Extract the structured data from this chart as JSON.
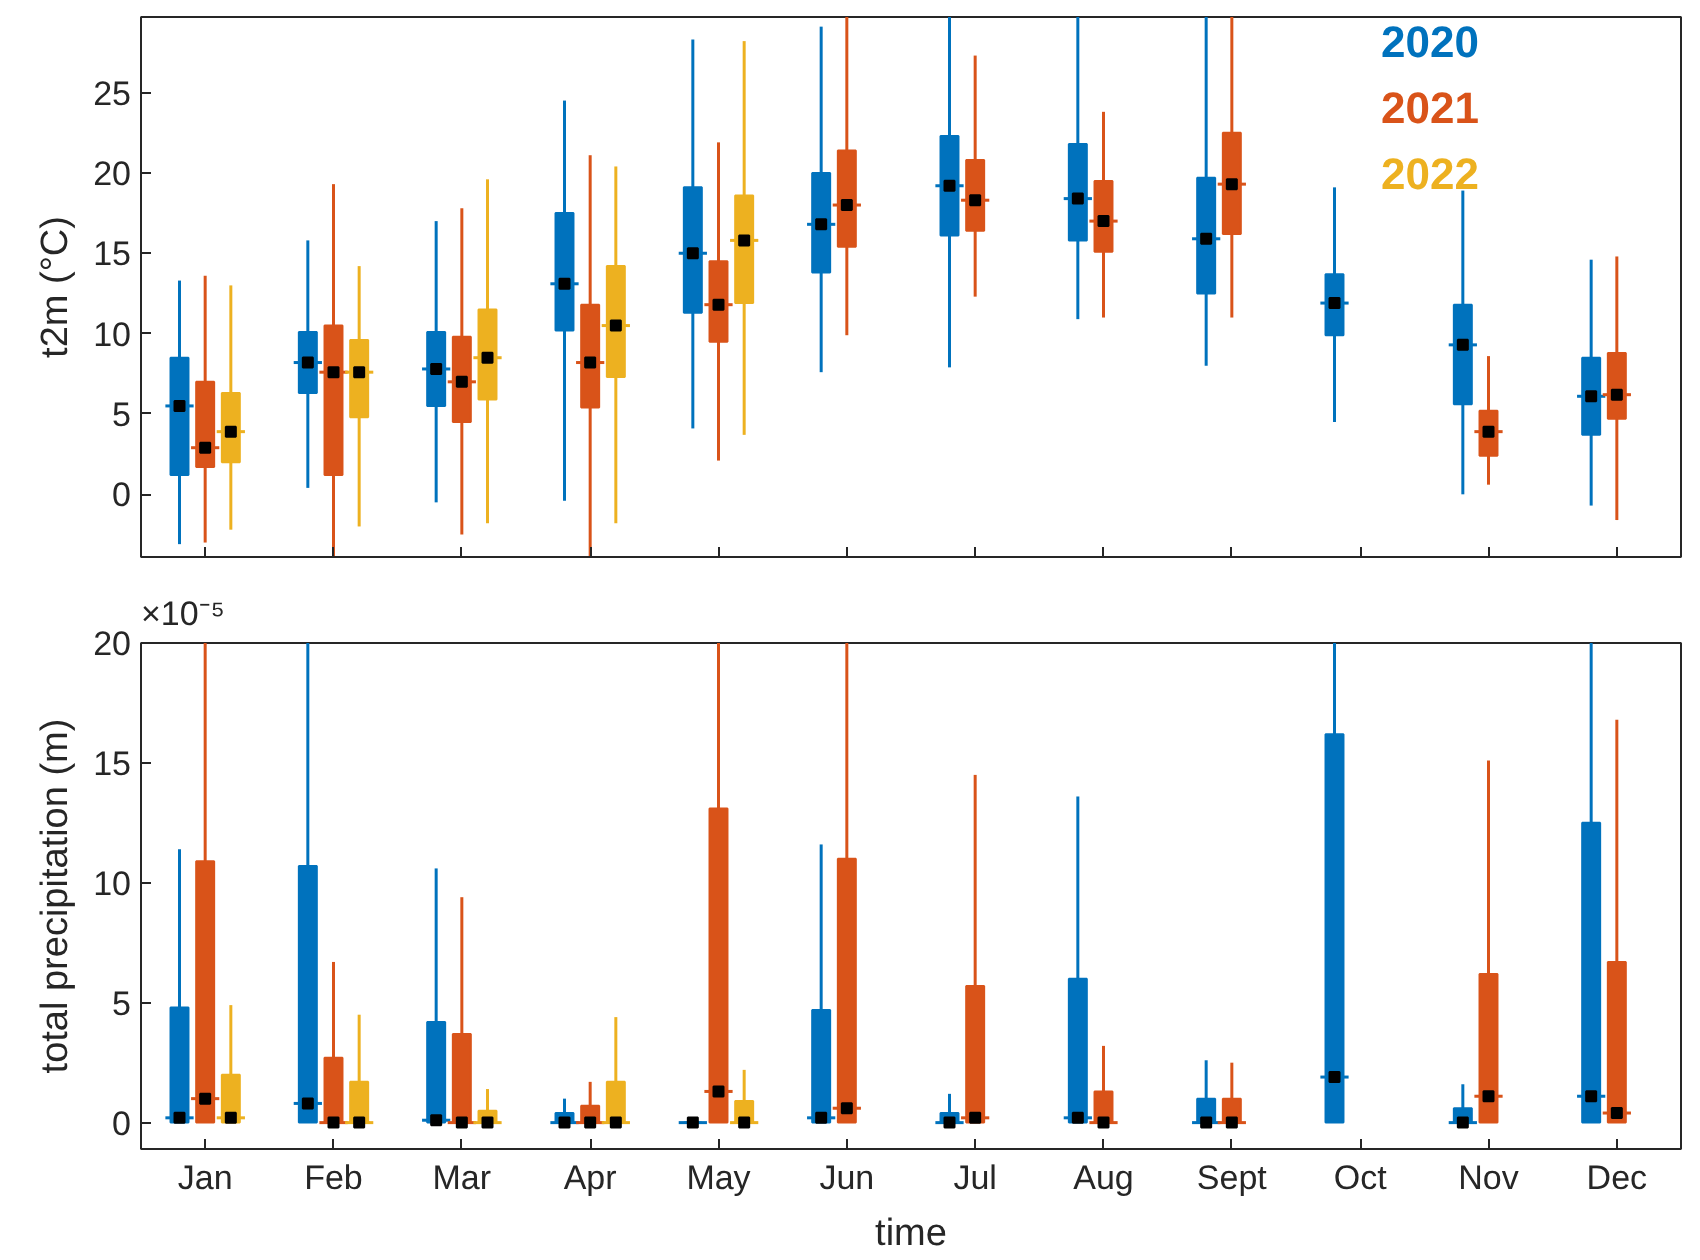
{
  "chart_data": [
    {
      "type": "box",
      "categories": [
        null,
        null,
        null,
        null,
        null,
        null,
        null,
        null,
        null,
        null,
        null,
        null
      ],
      "ylabel": "t2m (°C)",
      "ylim": [
        -3.9,
        29.7
      ],
      "yticks": [
        0,
        5,
        10,
        15,
        20,
        25
      ],
      "grid": false,
      "legend": "top right",
      "series": [
        {
          "name": "2020",
          "color": "#0072bd",
          "boxes": [
            {
              "low": -3.1,
              "q1": 1.2,
              "median": 5.5,
              "q3": 8.5,
              "high": 13.3,
              "mean": 5.5
            },
            {
              "low": 0.4,
              "q1": 6.3,
              "median": 8.2,
              "q3": 10.1,
              "high": 15.8,
              "mean": 8.2
            },
            {
              "low": -0.5,
              "q1": 5.5,
              "median": 7.8,
              "q3": 10.1,
              "high": 17.0,
              "mean": 7.8
            },
            {
              "low": -0.4,
              "q1": 10.2,
              "median": 13.1,
              "q3": 17.5,
              "high": 24.5,
              "mean": 13.1
            },
            {
              "low": 4.1,
              "q1": 11.3,
              "median": 15.0,
              "q3": 19.1,
              "high": 28.3,
              "mean": 15.0
            },
            {
              "low": 7.6,
              "q1": 13.8,
              "median": 16.8,
              "q3": 20.0,
              "high": 29.1,
              "mean": 16.8
            },
            {
              "low": 7.9,
              "q1": 16.1,
              "median": 19.2,
              "q3": 22.3,
              "high": 29.7,
              "mean": 19.2
            },
            {
              "low": 10.9,
              "q1": 15.8,
              "median": 18.4,
              "q3": 21.8,
              "high": 29.7,
              "mean": 18.4
            },
            {
              "low": 8.0,
              "q1": 12.5,
              "median": 15.9,
              "q3": 19.7,
              "high": 29.7,
              "mean": 15.9
            },
            {
              "low": 4.5,
              "q1": 9.9,
              "median": 11.9,
              "q3": 13.7,
              "high": 19.1,
              "mean": 11.9
            },
            {
              "low": 0.0,
              "q1": 5.6,
              "median": 9.3,
              "q3": 11.8,
              "high": 18.9,
              "mean": 9.3
            },
            {
              "low": -0.7,
              "q1": 3.7,
              "median": 6.1,
              "q3": 8.5,
              "high": 14.6,
              "mean": 6.1
            }
          ]
        },
        {
          "name": "2021",
          "color": "#d95319",
          "boxes": [
            {
              "low": -3.0,
              "q1": 1.7,
              "median": 2.9,
              "q3": 7.0,
              "high": 13.6,
              "mean": 2.9
            },
            {
              "low": -3.9,
              "q1": 1.2,
              "median": 7.6,
              "q3": 10.5,
              "high": 19.3,
              "mean": 7.6
            },
            {
              "low": -2.5,
              "q1": 4.5,
              "median": 7.0,
              "q3": 9.8,
              "high": 17.8,
              "mean": 7.0
            },
            {
              "low": -3.9,
              "q1": 5.4,
              "median": 8.2,
              "q3": 11.8,
              "high": 21.1,
              "mean": 8.2
            },
            {
              "low": 2.1,
              "q1": 9.5,
              "median": 11.8,
              "q3": 14.5,
              "high": 21.9,
              "mean": 11.8
            },
            {
              "low": 9.9,
              "q1": 15.4,
              "median": 18.0,
              "q3": 21.4,
              "high": 29.7,
              "mean": 18.0
            },
            {
              "low": 12.3,
              "q1": 16.4,
              "median": 18.3,
              "q3": 20.8,
              "high": 27.3,
              "mean": 18.3
            },
            {
              "low": 11.0,
              "q1": 15.1,
              "median": 17.0,
              "q3": 19.5,
              "high": 23.8,
              "mean": 17.0
            },
            {
              "low": 11.0,
              "q1": 16.2,
              "median": 19.3,
              "q3": 22.5,
              "high": 29.7,
              "mean": 19.3
            },
            null,
            {
              "low": 0.6,
              "q1": 2.4,
              "median": 3.9,
              "q3": 5.2,
              "high": 8.6,
              "mean": 3.9
            },
            {
              "low": -1.6,
              "q1": 4.7,
              "median": 6.2,
              "q3": 8.8,
              "high": 14.8,
              "mean": 6.2
            }
          ]
        },
        {
          "name": "2022",
          "color": "#edb120",
          "boxes": [
            {
              "low": -2.2,
              "q1": 2.0,
              "median": 3.9,
              "q3": 6.3,
              "high": 13.0,
              "mean": 3.9
            },
            {
              "low": -2.0,
              "q1": 4.8,
              "median": 7.6,
              "q3": 9.6,
              "high": 14.2,
              "mean": 7.6
            },
            {
              "low": -1.8,
              "q1": 5.9,
              "median": 8.5,
              "q3": 11.5,
              "high": 19.6,
              "mean": 8.5
            },
            {
              "low": -1.8,
              "q1": 7.3,
              "median": 10.5,
              "q3": 14.2,
              "high": 20.4,
              "mean": 10.5
            },
            {
              "low": 3.7,
              "q1": 11.9,
              "median": 15.8,
              "q3": 18.6,
              "high": 28.2,
              "mean": 15.8
            },
            null,
            null,
            null,
            null,
            null,
            null,
            null
          ]
        }
      ]
    },
    {
      "type": "box",
      "categories": [
        "Jan",
        "Feb",
        "Mar",
        "Apr",
        "May",
        "Jun",
        "Jul",
        "Aug",
        "Sept",
        "Oct",
        "Nov",
        "Dec"
      ],
      "xlabel": "time",
      "ylabel": "total precipitation (m)",
      "annotations": [
        "×10⁻⁵"
      ],
      "ylim": [
        -1.1,
        20
      ],
      "yticks": [
        0,
        5,
        10,
        15,
        20
      ],
      "grid": false,
      "series": [
        {
          "color": "#0072bd",
          "boxes": [
            {
              "low": 0,
              "q1": 0,
              "median": 0.2,
              "q3": 4.8,
              "high": 11.4,
              "mean": 0.2
            },
            {
              "low": 0,
              "q1": 0,
              "median": 0.8,
              "q3": 10.7,
              "high": 20,
              "mean": 0.8
            },
            {
              "low": 0,
              "q1": 0,
              "median": 0.1,
              "q3": 4.2,
              "high": 10.6,
              "mean": 0.1
            },
            {
              "low": 0,
              "q1": 0,
              "median": 0,
              "q3": 0.4,
              "high": 1.0,
              "mean": 0
            },
            {
              "low": 0,
              "q1": 0,
              "median": 0,
              "q3": 0,
              "high": 0,
              "mean": 0
            },
            {
              "low": 0,
              "q1": 0,
              "median": 0.2,
              "q3": 4.7,
              "high": 11.6,
              "mean": 0.2
            },
            {
              "low": 0,
              "q1": 0,
              "median": 0,
              "q3": 0.4,
              "high": 1.2,
              "mean": 0
            },
            {
              "low": 0,
              "q1": 0,
              "median": 0.2,
              "q3": 6.0,
              "high": 13.6,
              "mean": 0.2
            },
            {
              "low": 0,
              "q1": 0,
              "median": 0,
              "q3": 1.0,
              "high": 2.6,
              "mean": 0
            },
            {
              "low": 0,
              "q1": 0,
              "median": 1.9,
              "q3": 16.2,
              "high": 20,
              "mean": 1.9
            },
            {
              "low": 0,
              "q1": 0,
              "median": 0,
              "q3": 0.6,
              "high": 1.6,
              "mean": 0
            },
            {
              "low": 0,
              "q1": 0,
              "median": 1.1,
              "q3": 12.5,
              "high": 20,
              "mean": 1.1
            }
          ]
        },
        {
          "color": "#d95319",
          "boxes": [
            {
              "low": 0,
              "q1": 0,
              "median": 1.0,
              "q3": 10.9,
              "high": 20,
              "mean": 1.0
            },
            {
              "low": 0,
              "q1": 0,
              "median": 0,
              "q3": 2.7,
              "high": 6.7,
              "mean": 0
            },
            {
              "low": 0,
              "q1": 0,
              "median": 0,
              "q3": 3.7,
              "high": 9.4,
              "mean": 0
            },
            {
              "low": 0,
              "q1": 0,
              "median": 0,
              "q3": 0.7,
              "high": 1.7,
              "mean": 0
            },
            {
              "low": 0,
              "q1": 0,
              "median": 1.3,
              "q3": 13.1,
              "high": 20,
              "mean": 1.3
            },
            {
              "low": 0,
              "q1": 0,
              "median": 0.6,
              "q3": 11.0,
              "high": 20,
              "mean": 0.6
            },
            {
              "low": 0,
              "q1": 0,
              "median": 0.2,
              "q3": 5.7,
              "high": 14.5,
              "mean": 0.2
            },
            {
              "low": 0,
              "q1": 0,
              "median": 0,
              "q3": 1.3,
              "high": 3.2,
              "mean": 0
            },
            {
              "low": 0,
              "q1": 0,
              "median": 0,
              "q3": 1.0,
              "high": 2.5,
              "mean": 0
            },
            null,
            {
              "low": 0,
              "q1": 0,
              "median": 1.1,
              "q3": 6.2,
              "high": 15.1,
              "mean": 1.1
            },
            {
              "low": 0,
              "q1": 0,
              "median": 0.4,
              "q3": 6.7,
              "high": 16.8,
              "mean": 0.4
            }
          ]
        },
        {
          "color": "#edb120",
          "boxes": [
            {
              "low": 0,
              "q1": 0,
              "median": 0.2,
              "q3": 2.0,
              "high": 4.9,
              "mean": 0.2
            },
            {
              "low": 0,
              "q1": 0,
              "median": 0,
              "q3": 1.7,
              "high": 4.5,
              "mean": 0
            },
            {
              "low": 0,
              "q1": 0,
              "median": 0,
              "q3": 0.5,
              "high": 1.4,
              "mean": 0
            },
            {
              "low": 0,
              "q1": 0,
              "median": 0,
              "q3": 1.7,
              "high": 4.4,
              "mean": 0
            },
            {
              "low": 0,
              "q1": 0,
              "median": 0,
              "q3": 0.9,
              "high": 2.2,
              "mean": 0
            },
            null,
            null,
            null,
            null,
            null,
            null,
            null
          ]
        }
      ]
    }
  ]
}
